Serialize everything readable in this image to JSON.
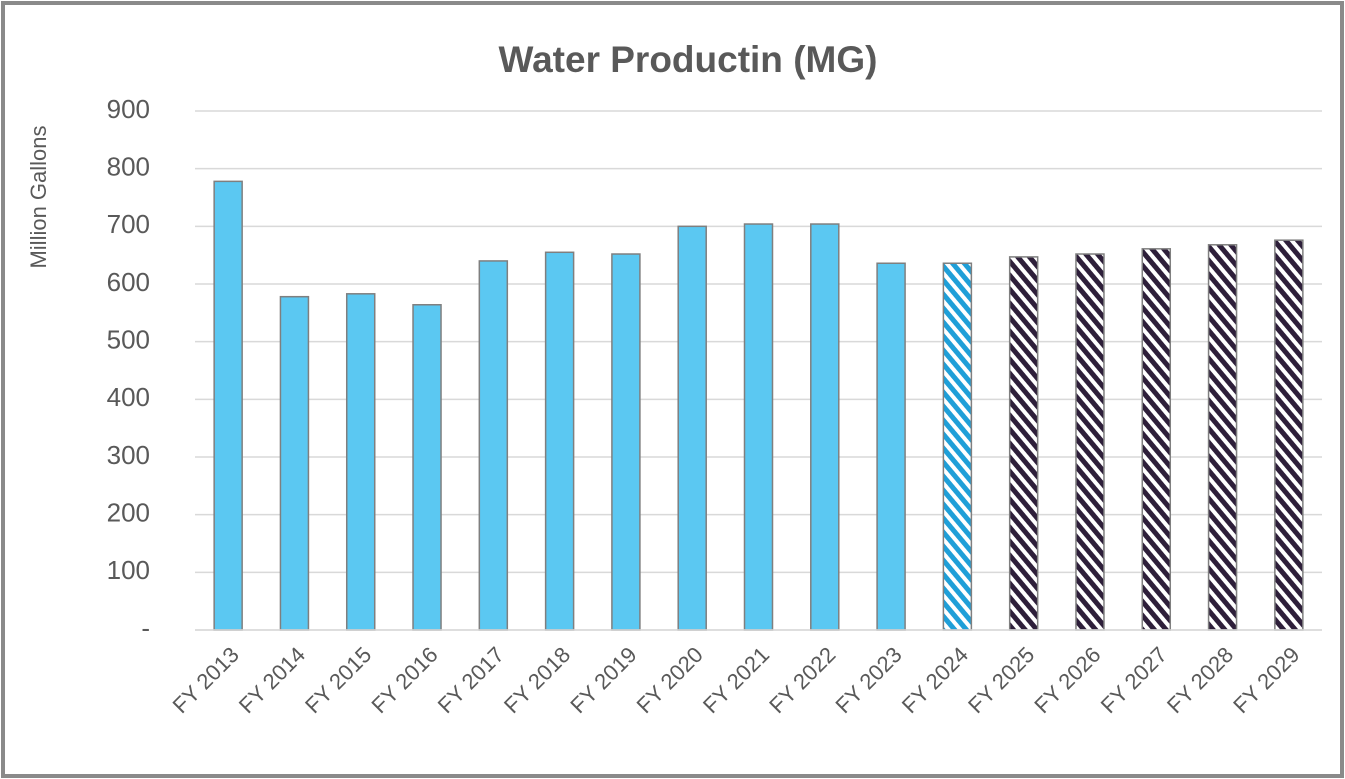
{
  "chart_data": {
    "type": "bar",
    "title": "Water Productin (MG)",
    "y_label": "Million Gallons",
    "categories": [
      "FY 2013",
      "FY 2014",
      "FY 2015",
      "FY 2016",
      "FY 2017",
      "FY 2018",
      "FY 2019",
      "FY 2020",
      "FY 2021",
      "FY 2022",
      "FY 2023",
      "FY 2024",
      "FY 2025",
      "FY 2026",
      "FY 2027",
      "FY 2028",
      "FY 2029"
    ],
    "values": [
      778,
      578,
      583,
      564,
      640,
      655,
      652,
      700,
      704,
      704,
      636,
      636,
      647,
      652,
      661,
      668,
      676
    ],
    "colors": [
      "#5bc8f2",
      "#5bc8f2",
      "#5bc8f2",
      "#5bc8f2",
      "#5bc8f2",
      "#5bc8f2",
      "#5bc8f2",
      "#5bc8f2",
      "#5bc8f2",
      "#5bc8f2",
      "#5bc8f2",
      "#1f9fd8",
      "#2e1f3a",
      "#2e1f3a",
      "#2e1f3a",
      "#2e1f3a",
      "#2e1f3a"
    ],
    "hatched": [
      false,
      false,
      false,
      false,
      false,
      false,
      false,
      false,
      false,
      false,
      false,
      true,
      true,
      true,
      true,
      true,
      true
    ],
    "ylim": [
      0,
      900
    ],
    "yticks": [
      {
        "value": 0,
        "label": "-"
      },
      100,
      200,
      300,
      400,
      500,
      600,
      700,
      800,
      900
    ],
    "grid": true
  }
}
